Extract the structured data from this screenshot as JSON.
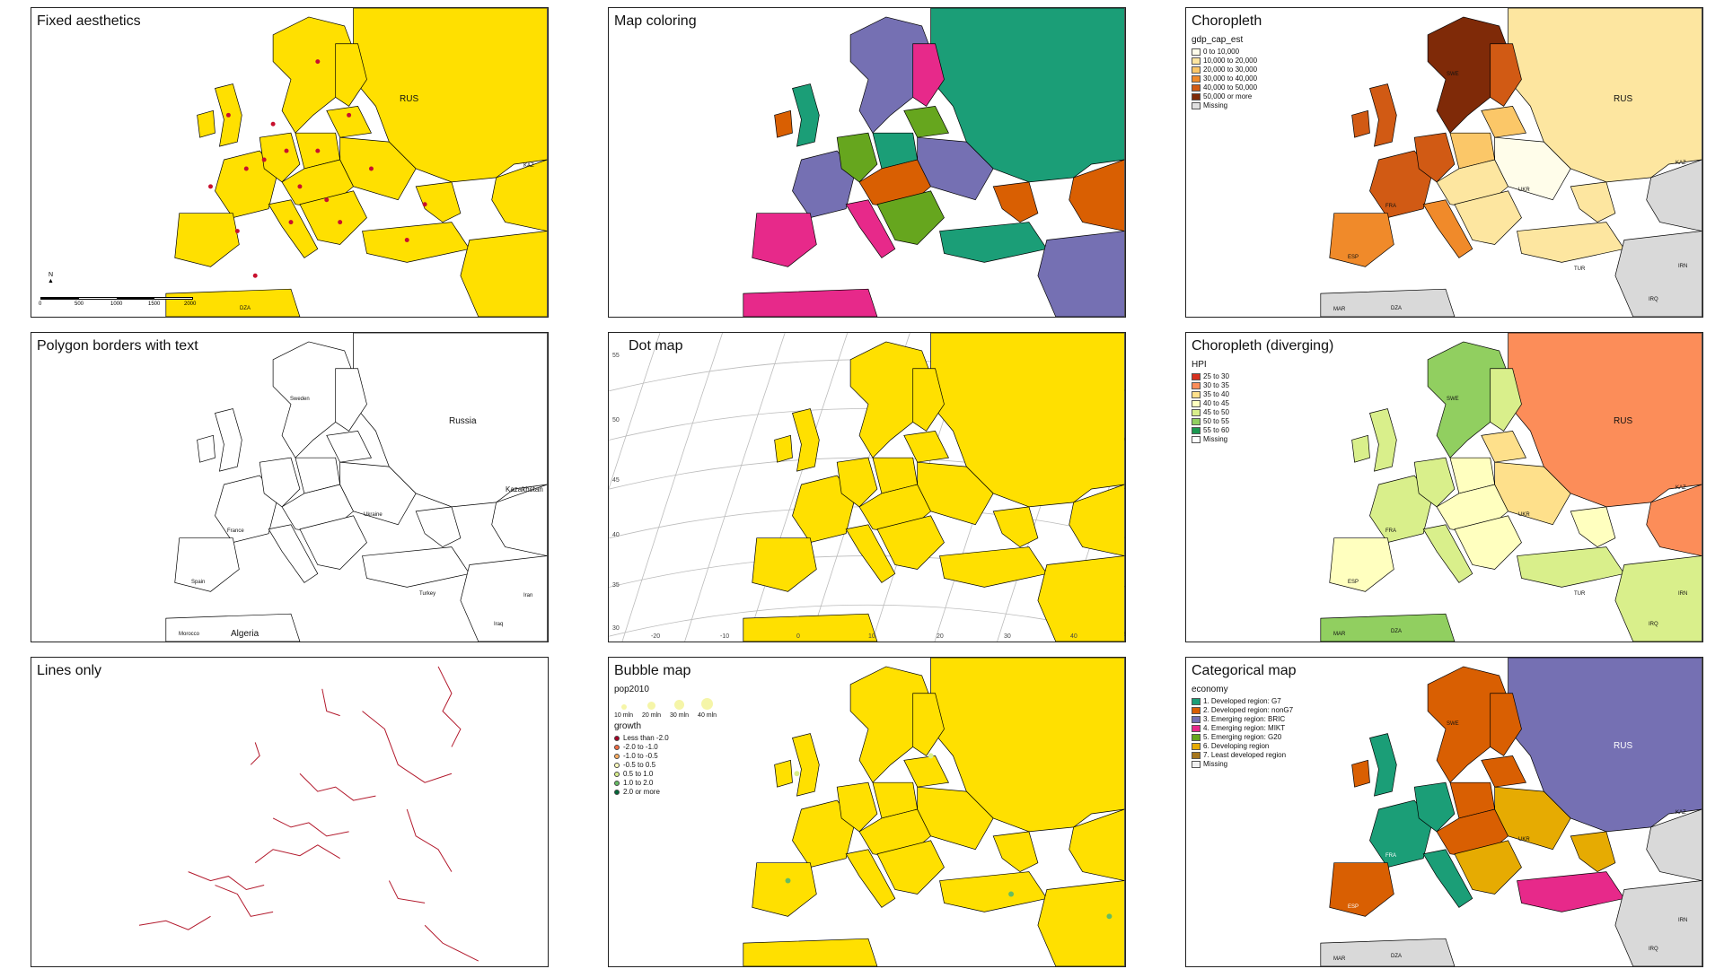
{
  "panels": [
    {
      "title": "Fixed aesthetics",
      "labels": {
        "rus": "RUS",
        "kaz": "KAZ",
        "dza": "DZA"
      },
      "scalebar": [
        "0",
        "500",
        "1000",
        "1500",
        "2000"
      ],
      "north": "N"
    },
    {
      "title": "Map coloring"
    },
    {
      "title": "Choropleth",
      "legend": {
        "title": "gdp_cap_est",
        "items": [
          {
            "label": "0 to 10,000",
            "color": "#fffdea"
          },
          {
            "label": "10,000 to 20,000",
            "color": "#fde6a0"
          },
          {
            "label": "20,000 to 30,000",
            "color": "#fbc768"
          },
          {
            "label": "30,000 to 40,000",
            "color": "#f08a2a"
          },
          {
            "label": "40,000 to 50,000",
            "color": "#d15a14"
          },
          {
            "label": "50,000 or more",
            "color": "#7f2a08"
          },
          {
            "label": "Missing",
            "color": "#e0e0e0"
          }
        ]
      },
      "labels": {
        "rus": "RUS",
        "kaz": "KAZ",
        "irn": "IRN",
        "irq": "IRQ",
        "dza": "DZA",
        "mar": "MAR",
        "esp": "ESP",
        "fra": "FRA",
        "ukr": "UKR",
        "tur": "TUR",
        "swe": "SWE"
      }
    },
    {
      "title": "Polygon borders with text",
      "labels": {
        "russia": "Russia",
        "kazakhstan": "Kazakhstan",
        "ukraine": "Ukraine",
        "france": "France",
        "spain": "Spain",
        "turkey": "Turkey",
        "iran": "Iran",
        "iraq": "Iraq",
        "algeria": "Algeria",
        "morocco": "Morocco",
        "sweden": "Sweden"
      }
    },
    {
      "title": "Dot map",
      "yticks": [
        "55",
        "50",
        "45",
        "40",
        "35",
        "30"
      ],
      "xticks": [
        "-20",
        "-10",
        "0",
        "10",
        "20",
        "30",
        "40"
      ]
    },
    {
      "title": "Choropleth (diverging)",
      "legend": {
        "title": "HPI",
        "items": [
          {
            "label": "25 to 30",
            "color": "#d7301f"
          },
          {
            "label": "30 to 35",
            "color": "#fc8d59"
          },
          {
            "label": "35 to 40",
            "color": "#fee08b"
          },
          {
            "label": "40 to 45",
            "color": "#ffffbf"
          },
          {
            "label": "45 to 50",
            "color": "#d9ef8b"
          },
          {
            "label": "50 to 55",
            "color": "#91cf60"
          },
          {
            "label": "55 to 60",
            "color": "#1a9850"
          },
          {
            "label": "Missing",
            "color": "#ffffff"
          }
        ]
      },
      "labels": {
        "rus": "RUS",
        "kaz": "KAZ",
        "irn": "IRN",
        "irq": "IRQ",
        "dza": "DZA",
        "mar": "MAR",
        "esp": "ESP",
        "fra": "FRA",
        "ukr": "UKR",
        "tur": "TUR",
        "swe": "SWE"
      }
    },
    {
      "title": "Lines only"
    },
    {
      "title": "Bubble map",
      "size_legend": {
        "title": "pop2010",
        "items": [
          "10 mln",
          "20 mln",
          "30 mln",
          "40 mln"
        ]
      },
      "legend": {
        "title": "growth",
        "items": [
          {
            "label": "Less than -2.0",
            "color": "#a50026"
          },
          {
            "label": "-2.0 to -1.0",
            "color": "#f46d43"
          },
          {
            "label": "-1.0 to -0.5",
            "color": "#fdae61"
          },
          {
            "label": "-0.5 to 0.5",
            "color": "#ffffbf"
          },
          {
            "label": "0.5 to 1.0",
            "color": "#d9ef8b"
          },
          {
            "label": "1.0 to 2.0",
            "color": "#66bd63"
          },
          {
            "label": "2.0 or more",
            "color": "#006837"
          }
        ]
      }
    },
    {
      "title": "Categorical map",
      "legend": {
        "title": "economy",
        "items": [
          {
            "label": "1. Developed region: G7",
            "color": "#1b9e77"
          },
          {
            "label": "2. Developed region: nonG7",
            "color": "#d95f02"
          },
          {
            "label": "3. Emerging region: BRIC",
            "color": "#7570b3"
          },
          {
            "label": "4. Emerging region: MIKT",
            "color": "#e7298a"
          },
          {
            "label": "5. Emerging region: G20",
            "color": "#66a61e"
          },
          {
            "label": "6. Developing region",
            "color": "#e6ab02"
          },
          {
            "label": "7. Least developed region",
            "color": "#a6761d"
          },
          {
            "label": "Missing",
            "color": "#f0f0f0"
          }
        ]
      },
      "labels": {
        "rus": "RUS",
        "kaz": "KAZ",
        "irn": "IRN",
        "irq": "IRQ",
        "dza": "DZA",
        "mar": "MAR",
        "esp": "ESP",
        "fra": "FRA",
        "ukr": "UKR",
        "tur": "TUR",
        "swe": "SWE"
      }
    }
  ],
  "colors": {
    "yellow": "#ffe000",
    "dot_red": "#c8102e",
    "river_red": "#b2182b",
    "teal": "#1b9e77",
    "orange": "#d95f02",
    "purple": "#7570b3",
    "pink": "#e7298a",
    "green": "#66a61e",
    "grey": "#d9d9d9"
  }
}
